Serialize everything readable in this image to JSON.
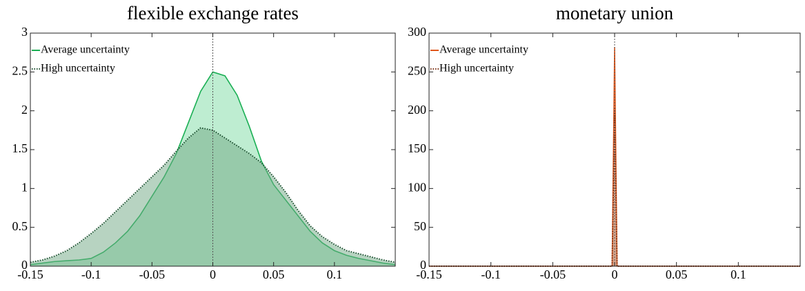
{
  "chart_data": [
    {
      "type": "area",
      "title": "flexible exchange rates",
      "x": [
        -0.15,
        -0.14,
        -0.13,
        -0.12,
        -0.11,
        -0.1,
        -0.09,
        -0.08,
        -0.07,
        -0.06,
        -0.05,
        -0.04,
        -0.03,
        -0.02,
        -0.01,
        0,
        0.01,
        0.02,
        0.03,
        0.04,
        0.05,
        0.06,
        0.07,
        0.08,
        0.09,
        0.1,
        0.11,
        0.12,
        0.13,
        0.14,
        0.15
      ],
      "series": [
        {
          "name": "Average uncertainty",
          "color": "#1aaf54",
          "fill": "#7ddca3",
          "dash": false,
          "values": [
            0.02,
            0.04,
            0.06,
            0.07,
            0.08,
            0.1,
            0.18,
            0.3,
            0.45,
            0.65,
            0.9,
            1.15,
            1.45,
            1.85,
            2.25,
            2.5,
            2.45,
            2.2,
            1.8,
            1.35,
            1.05,
            0.85,
            0.65,
            0.45,
            0.3,
            0.2,
            0.14,
            0.1,
            0.07,
            0.04,
            0.02
          ]
        },
        {
          "name": "High uncertainty",
          "color": "#1a4d2e",
          "fill": "#6fa884",
          "dash": true,
          "values": [
            0.05,
            0.08,
            0.13,
            0.2,
            0.3,
            0.42,
            0.55,
            0.7,
            0.85,
            1.0,
            1.15,
            1.3,
            1.48,
            1.65,
            1.78,
            1.75,
            1.65,
            1.55,
            1.45,
            1.33,
            1.15,
            0.95,
            0.72,
            0.52,
            0.38,
            0.28,
            0.2,
            0.16,
            0.12,
            0.08,
            0.05
          ]
        }
      ],
      "xlim": [
        -0.15,
        0.15
      ],
      "ylim": [
        0,
        3
      ],
      "xticks": [
        -0.15,
        -0.1,
        -0.05,
        0,
        0.05,
        0.1
      ],
      "yticks": [
        0,
        0.5,
        1,
        1.5,
        2,
        2.5,
        3
      ],
      "vline": 0,
      "legend": "upper left"
    },
    {
      "type": "area",
      "title": "monetary union",
      "x": [
        -0.15,
        -0.002,
        -0.001,
        0,
        0.001,
        0.002,
        0.15
      ],
      "series": [
        {
          "name": "Average uncertainty",
          "color": "#e0561a",
          "fill": "#f0a27a",
          "dash": false,
          "values": [
            0,
            0,
            140,
            282,
            140,
            0,
            0
          ]
        },
        {
          "name": "High uncertainty",
          "color": "#7a2e10",
          "fill": "#b87a5c",
          "dash": true,
          "values": [
            0,
            0,
            100,
            203,
            100,
            0,
            0
          ]
        }
      ],
      "xlim": [
        -0.15,
        0.15
      ],
      "ylim": [
        0,
        300
      ],
      "xticks": [
        -0.15,
        -0.1,
        -0.05,
        0,
        0.05,
        0.1
      ],
      "yticks": [
        0,
        50,
        100,
        150,
        200,
        250,
        300
      ],
      "vline": 0,
      "legend": "upper left"
    }
  ]
}
